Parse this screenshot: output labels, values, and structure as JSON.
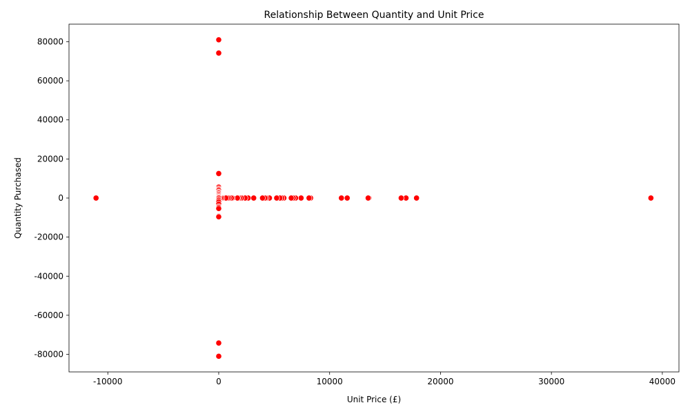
{
  "chart_data": {
    "type": "scatter",
    "title": "Relationship Between Quantity and Unit Price",
    "xlabel": "Unit Price (£)",
    "ylabel": "Quantity Purchased",
    "xlim": [
      -13500,
      41500
    ],
    "ylim": [
      -89000,
      89000
    ],
    "xticks": [
      -10000,
      0,
      10000,
      20000,
      30000,
      40000
    ],
    "yticks": [
      -80000,
      -60000,
      -40000,
      -20000,
      0,
      20000,
      40000,
      60000,
      80000
    ],
    "grid": false,
    "legend": "none",
    "marker_color": "#ff0000",
    "marker_edge_color": "#ffffff",
    "points": [
      {
        "x": -11062,
        "y": 1
      },
      {
        "x": 38970,
        "y": -1
      },
      {
        "x": 17836,
        "y": -1
      },
      {
        "x": 16888,
        "y": -1
      },
      {
        "x": 16453,
        "y": -1
      },
      {
        "x": 13541,
        "y": 1
      },
      {
        "x": 13474,
        "y": -1
      },
      {
        "x": 11586,
        "y": -1
      },
      {
        "x": 11062,
        "y": 1
      },
      {
        "x": 8286,
        "y": -1
      },
      {
        "x": 8143,
        "y": -1
      },
      {
        "x": 7427,
        "y": -1
      },
      {
        "x": 6930,
        "y": -1
      },
      {
        "x": 6721,
        "y": -1
      },
      {
        "x": 6539,
        "y": -1
      },
      {
        "x": 5876,
        "y": -1
      },
      {
        "x": 5693,
        "y": -1
      },
      {
        "x": 5522,
        "y": -1
      },
      {
        "x": 5225,
        "y": -1
      },
      {
        "x": 4575,
        "y": -1
      },
      {
        "x": 4287,
        "y": -1
      },
      {
        "x": 4161,
        "y": -1
      },
      {
        "x": 3949,
        "y": -1
      },
      {
        "x": 3155,
        "y": -1
      },
      {
        "x": 2653,
        "y": -1
      },
      {
        "x": 2382,
        "y": -1
      },
      {
        "x": 2053,
        "y": -1
      },
      {
        "x": 1867,
        "y": -1
      },
      {
        "x": 1715,
        "y": -1
      },
      {
        "x": 1687,
        "y": -1
      },
      {
        "x": 1241,
        "y": -1
      },
      {
        "x": 1136,
        "y": -1
      },
      {
        "x": 938,
        "y": -1
      },
      {
        "x": 795,
        "y": -1
      },
      {
        "x": 649,
        "y": -1
      },
      {
        "x": 295,
        "y": 1
      },
      {
        "x": 165,
        "y": 12
      },
      {
        "x": 1.04,
        "y": 80995
      },
      {
        "x": 2.08,
        "y": -80995
      },
      {
        "x": 1.04,
        "y": 74215
      },
      {
        "x": 1.04,
        "y": -74215
      },
      {
        "x": 0.21,
        "y": 12540
      },
      {
        "x": 0.32,
        "y": 5568
      },
      {
        "x": 0.06,
        "y": 4800
      },
      {
        "x": 0.85,
        "y": 4300
      },
      {
        "x": 0.12,
        "y": 3906
      },
      {
        "x": 0.55,
        "y": 3114
      },
      {
        "x": 0.72,
        "y": 2880
      },
      {
        "x": 0.19,
        "y": 2400
      },
      {
        "x": 0.25,
        "y": 1930
      },
      {
        "x": 0.42,
        "y": 1440
      },
      {
        "x": 0.85,
        "y": 1000
      },
      {
        "x": 1.25,
        "y": 600
      },
      {
        "x": 2.1,
        "y": 240
      },
      {
        "x": 4.95,
        "y": 48
      },
      {
        "x": 0.32,
        "y": -600
      },
      {
        "x": 0.55,
        "y": -1200
      },
      {
        "x": 0.21,
        "y": -2000
      },
      {
        "x": 0.12,
        "y": -3114
      },
      {
        "x": 0.19,
        "y": -4300
      },
      {
        "x": 0.06,
        "y": -4800
      },
      {
        "x": 0.03,
        "y": -5368
      },
      {
        "x": 0.1,
        "y": -9058
      },
      {
        "x": 0.1,
        "y": -9360
      },
      {
        "x": 0.1,
        "y": -9600
      }
    ]
  }
}
